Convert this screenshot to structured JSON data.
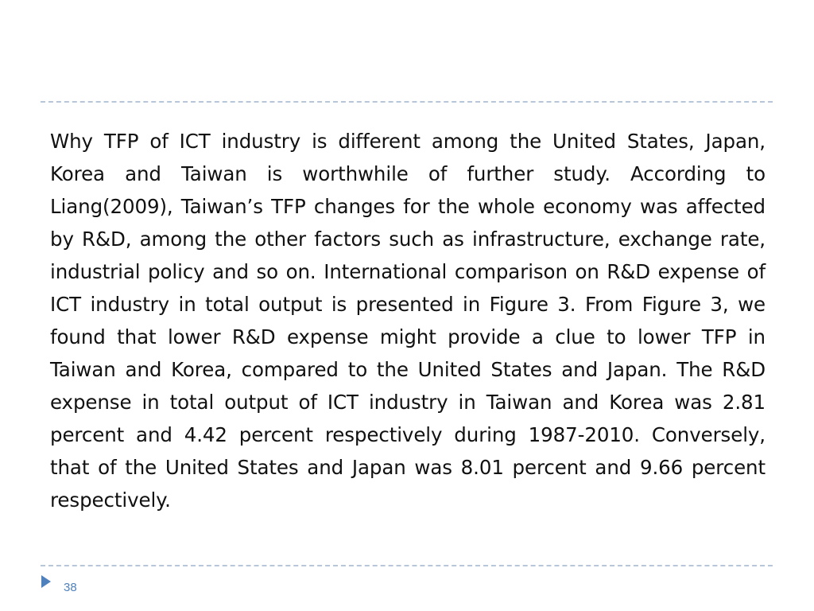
{
  "slide": {
    "body_text": "Why TFP of ICT industry is different among the United States, Japan, Korea and Taiwan is worthwhile of further study. According to Liang(2009), Taiwan’s TFP changes for the whole economy was affected by R&D, among the other factors such as infrastructure, exchange rate, industrial policy and so on. International comparison on R&D expense of ICT industry in total output is presented in Figure 3. From Figure 3, we found that lower R&D expense might provide a clue to lower TFP in Taiwan and Korea, compared to the United States and Japan. The R&D expense in total output of ICT industry in Taiwan and Korea was 2.81 percent and 4.42 percent respectively during 1987-2010. Conversely, that of the United States and Japan was 8.01 percent and 9.66 percent respectively.",
    "page_number": "38",
    "footer_icon": "triangle-bullet-icon"
  },
  "colors": {
    "rule": "#b7c6d9",
    "text": "#111111",
    "accent": "#4f81bd",
    "background": "#ffffff"
  }
}
